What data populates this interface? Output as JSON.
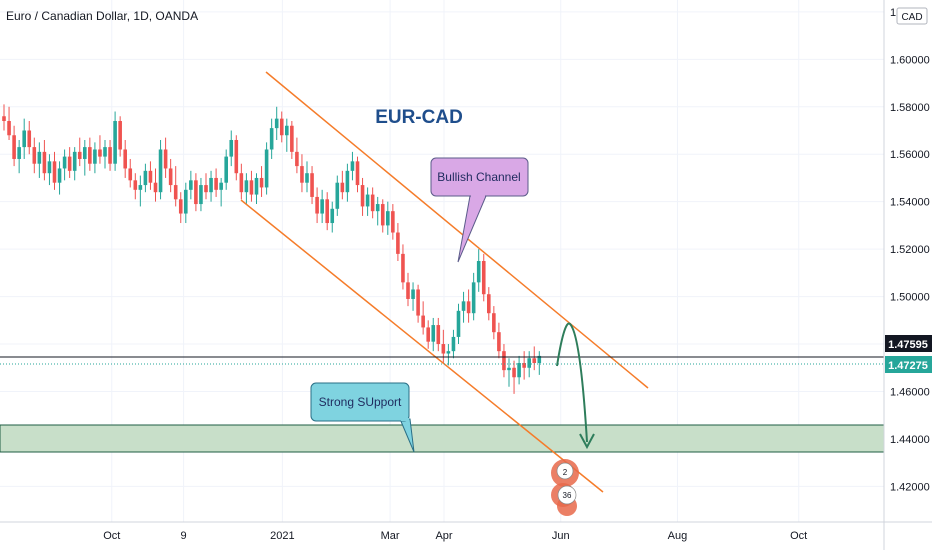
{
  "header": {
    "title": "Euro / Canadian Dollar, 1D, OANDA",
    "currency_label": "CAD"
  },
  "chart_data": {
    "type": "candlestick",
    "title": "EUR-CAD",
    "ylim": [
      1.405,
      1.625
    ],
    "y_ticks": [
      {
        "value": 1.42,
        "label": "1.42000"
      },
      {
        "value": 1.44,
        "label": "1.44000"
      },
      {
        "value": 1.46,
        "label": "1.46000"
      },
      {
        "value": 1.48,
        "label": "1.48000"
      },
      {
        "value": 1.5,
        "label": "1.50000"
      },
      {
        "value": 1.52,
        "label": "1.52000"
      },
      {
        "value": 1.54,
        "label": "1.54000"
      },
      {
        "value": 1.56,
        "label": "1.56000"
      },
      {
        "value": 1.58,
        "label": "1.58000"
      },
      {
        "value": 1.6,
        "label": "1.60000"
      },
      {
        "value": 1.62,
        "label": "1"
      }
    ],
    "x_ticks": [
      {
        "label": "Oct",
        "bar": 24
      },
      {
        "label": "9",
        "bar": 40
      },
      {
        "label": "2021",
        "bar": 62
      },
      {
        "label": "Mar",
        "bar": 86
      },
      {
        "label": "Apr",
        "bar": 98
      },
      {
        "label": "Jun",
        "bar": 124
      },
      {
        "label": "Aug",
        "bar": 150
      },
      {
        "label": "Oct",
        "bar": 177
      }
    ],
    "x_range": [
      0,
      196
    ],
    "price_labels": [
      {
        "value": 1.47595,
        "label": "1.47595",
        "color": "#131722",
        "text_color": "#ffffff"
      },
      {
        "value": 1.47275,
        "label": "1.47275",
        "color": "#26a69a",
        "text_color": "#ffffff"
      }
    ],
    "colors": {
      "up": "#26a69a",
      "down": "#ef5350",
      "channel": "#f57c2a",
      "support_fill": "#c8dfc9",
      "support_border": "#1e5d43",
      "projection": "#2e7d5b",
      "title": "#1f4e8c",
      "callout_channel": "#d9a8e6",
      "callout_support": "#7fd3e0"
    },
    "ohlc": [
      [
        1.576,
        1.581,
        1.57,
        1.574
      ],
      [
        1.574,
        1.58,
        1.566,
        1.568
      ],
      [
        1.568,
        1.572,
        1.555,
        1.558
      ],
      [
        1.558,
        1.566,
        1.552,
        1.563
      ],
      [
        1.563,
        1.575,
        1.558,
        1.57
      ],
      [
        1.57,
        1.574,
        1.56,
        1.563
      ],
      [
        1.563,
        1.567,
        1.552,
        1.556
      ],
      [
        1.556,
        1.565,
        1.55,
        1.561
      ],
      [
        1.561,
        1.566,
        1.549,
        1.552
      ],
      [
        1.552,
        1.56,
        1.547,
        1.557
      ],
      [
        1.557,
        1.561,
        1.545,
        1.548
      ],
      [
        1.548,
        1.557,
        1.543,
        1.554
      ],
      [
        1.554,
        1.562,
        1.549,
        1.559
      ],
      [
        1.559,
        1.563,
        1.55,
        1.553
      ],
      [
        1.553,
        1.563,
        1.549,
        1.561
      ],
      [
        1.561,
        1.567,
        1.555,
        1.558
      ],
      [
        1.558,
        1.566,
        1.551,
        1.563
      ],
      [
        1.563,
        1.567,
        1.553,
        1.556
      ],
      [
        1.556,
        1.565,
        1.552,
        1.562
      ],
      [
        1.562,
        1.568,
        1.556,
        1.559
      ],
      [
        1.559,
        1.566,
        1.554,
        1.563
      ],
      [
        1.563,
        1.566,
        1.553,
        1.556
      ],
      [
        1.556,
        1.578,
        1.553,
        1.574
      ],
      [
        1.574,
        1.576,
        1.559,
        1.562
      ],
      [
        1.562,
        1.566,
        1.55,
        1.554
      ],
      [
        1.554,
        1.558,
        1.546,
        1.549
      ],
      [
        1.549,
        1.552,
        1.541,
        1.545
      ],
      [
        1.545,
        1.551,
        1.538,
        1.547
      ],
      [
        1.547,
        1.556,
        1.544,
        1.553
      ],
      [
        1.553,
        1.557,
        1.545,
        1.548
      ],
      [
        1.548,
        1.554,
        1.54,
        1.544
      ],
      [
        1.544,
        1.566,
        1.541,
        1.562
      ],
      [
        1.562,
        1.567,
        1.55,
        1.554
      ],
      [
        1.554,
        1.558,
        1.544,
        1.547
      ],
      [
        1.547,
        1.555,
        1.538,
        1.541
      ],
      [
        1.541,
        1.544,
        1.531,
        1.535
      ],
      [
        1.535,
        1.548,
        1.531,
        1.545
      ],
      [
        1.545,
        1.553,
        1.541,
        1.549
      ],
      [
        1.549,
        1.552,
        1.536,
        1.539
      ],
      [
        1.539,
        1.55,
        1.536,
        1.547
      ],
      [
        1.547,
        1.552,
        1.541,
        1.544
      ],
      [
        1.544,
        1.553,
        1.54,
        1.55
      ],
      [
        1.55,
        1.554,
        1.542,
        1.545
      ],
      [
        1.545,
        1.55,
        1.538,
        1.548
      ],
      [
        1.548,
        1.562,
        1.545,
        1.559
      ],
      [
        1.559,
        1.57,
        1.555,
        1.566
      ],
      [
        1.566,
        1.568,
        1.549,
        1.552
      ],
      [
        1.552,
        1.556,
        1.541,
        1.544
      ],
      [
        1.544,
        1.552,
        1.539,
        1.549
      ],
      [
        1.549,
        1.553,
        1.54,
        1.543
      ],
      [
        1.543,
        1.552,
        1.539,
        1.55
      ],
      [
        1.55,
        1.555,
        1.542,
        1.546
      ],
      [
        1.546,
        1.565,
        1.543,
        1.562
      ],
      [
        1.562,
        1.575,
        1.558,
        1.571
      ],
      [
        1.571,
        1.58,
        1.566,
        1.575
      ],
      [
        1.575,
        1.578,
        1.565,
        1.568
      ],
      [
        1.568,
        1.575,
        1.561,
        1.572
      ],
      [
        1.572,
        1.574,
        1.558,
        1.561
      ],
      [
        1.561,
        1.567,
        1.552,
        1.555
      ],
      [
        1.555,
        1.56,
        1.544,
        1.548
      ],
      [
        1.548,
        1.557,
        1.544,
        1.552
      ],
      [
        1.552,
        1.555,
        1.539,
        1.542
      ],
      [
        1.542,
        1.546,
        1.531,
        1.535
      ],
      [
        1.535,
        1.545,
        1.531,
        1.541
      ],
      [
        1.541,
        1.544,
        1.528,
        1.531
      ],
      [
        1.531,
        1.54,
        1.527,
        1.537
      ],
      [
        1.537,
        1.551,
        1.534,
        1.548
      ],
      [
        1.548,
        1.553,
        1.541,
        1.544
      ],
      [
        1.544,
        1.556,
        1.54,
        1.553
      ],
      [
        1.553,
        1.561,
        1.549,
        1.557
      ],
      [
        1.557,
        1.559,
        1.544,
        1.547
      ],
      [
        1.547,
        1.55,
        1.534,
        1.538
      ],
      [
        1.538,
        1.546,
        1.534,
        1.543
      ],
      [
        1.543,
        1.546,
        1.533,
        1.536
      ],
      [
        1.536,
        1.542,
        1.53,
        1.539
      ],
      [
        1.539,
        1.541,
        1.527,
        1.53
      ],
      [
        1.53,
        1.54,
        1.526,
        1.536
      ],
      [
        1.536,
        1.539,
        1.524,
        1.527
      ],
      [
        1.527,
        1.531,
        1.515,
        1.518
      ],
      [
        1.518,
        1.522,
        1.503,
        1.506
      ],
      [
        1.506,
        1.51,
        1.496,
        1.499
      ],
      [
        1.499,
        1.506,
        1.494,
        1.503
      ],
      [
        1.503,
        1.505,
        1.489,
        1.492
      ],
      [
        1.492,
        1.498,
        1.484,
        1.487
      ],
      [
        1.487,
        1.49,
        1.478,
        1.481
      ],
      [
        1.481,
        1.491,
        1.477,
        1.488
      ],
      [
        1.488,
        1.491,
        1.477,
        1.48
      ],
      [
        1.48,
        1.486,
        1.472,
        1.476
      ],
      [
        1.476,
        1.48,
        1.471,
        1.477
      ],
      [
        1.477,
        1.486,
        1.474,
        1.483
      ],
      [
        1.483,
        1.497,
        1.48,
        1.494
      ],
      [
        1.494,
        1.502,
        1.489,
        1.498
      ],
      [
        1.498,
        1.503,
        1.489,
        1.493
      ],
      [
        1.493,
        1.51,
        1.49,
        1.506
      ],
      [
        1.506,
        1.52,
        1.502,
        1.515
      ],
      [
        1.515,
        1.518,
        1.498,
        1.501
      ],
      [
        1.501,
        1.504,
        1.49,
        1.493
      ],
      [
        1.493,
        1.496,
        1.482,
        1.485
      ],
      [
        1.485,
        1.489,
        1.474,
        1.477
      ],
      [
        1.477,
        1.48,
        1.466,
        1.469
      ],
      [
        1.469,
        1.474,
        1.462,
        1.47
      ],
      [
        1.47,
        1.473,
        1.459,
        1.466
      ],
      [
        1.466,
        1.475,
        1.463,
        1.472
      ],
      [
        1.472,
        1.477,
        1.465,
        1.47
      ],
      [
        1.47,
        1.477,
        1.466,
        1.474
      ],
      [
        1.474,
        1.479,
        1.469,
        1.472
      ],
      [
        1.472,
        1.477,
        1.467,
        1.475
      ]
    ]
  }
}
